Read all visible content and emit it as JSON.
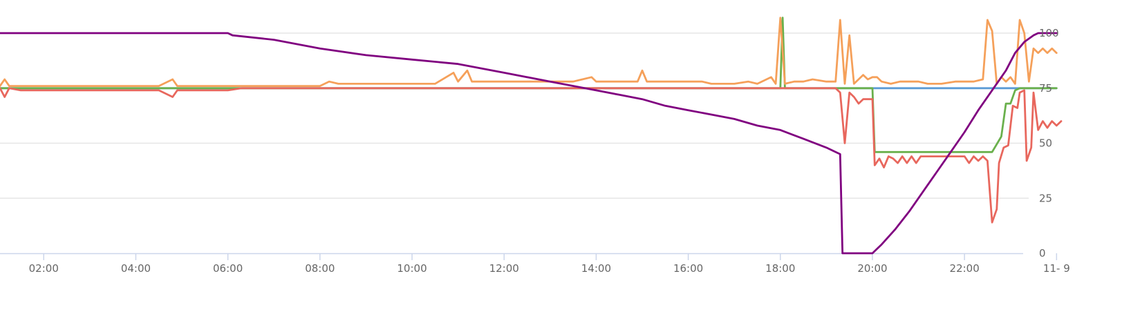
{
  "chart_data": {
    "type": "line",
    "title": "",
    "xlabel": "",
    "ylabel": "",
    "x_unit": "hour",
    "xlim": [
      1.05,
      24.1
    ],
    "ylim": [
      0,
      108
    ],
    "grid": true,
    "legend": "none",
    "x_ticks": [
      {
        "value": 2,
        "label": "02:00"
      },
      {
        "value": 4,
        "label": "04:00"
      },
      {
        "value": 6,
        "label": "06:00"
      },
      {
        "value": 8,
        "label": "08:00"
      },
      {
        "value": 10,
        "label": "10:00"
      },
      {
        "value": 12,
        "label": "12:00"
      },
      {
        "value": 14,
        "label": "14:00"
      },
      {
        "value": 16,
        "label": "16:00"
      },
      {
        "value": 18,
        "label": "18:00"
      },
      {
        "value": 20,
        "label": "20:00"
      },
      {
        "value": 22,
        "label": "22:00"
      },
      {
        "value": 24,
        "label": "11- 9"
      }
    ],
    "y_ticks": [
      {
        "value": 0,
        "label": "0"
      },
      {
        "value": 25,
        "label": "25"
      },
      {
        "value": 50,
        "label": "50"
      },
      {
        "value": 75,
        "label": "75"
      },
      {
        "value": 100,
        "label": "100"
      }
    ],
    "series": [
      {
        "color": "#5b9bd5",
        "points": [
          [
            1.05,
            75
          ],
          [
            24,
            75
          ]
        ]
      },
      {
        "color": "#6ab04c",
        "points": [
          [
            1.05,
            75
          ],
          [
            18,
            75
          ],
          [
            18.05,
            107
          ],
          [
            18.1,
            75
          ],
          [
            20,
            75
          ],
          [
            20.05,
            46
          ],
          [
            22.6,
            46
          ],
          [
            22.8,
            53
          ],
          [
            22.9,
            68
          ],
          [
            23,
            68
          ],
          [
            23.1,
            74
          ],
          [
            23.2,
            75
          ],
          [
            24,
            75
          ]
        ]
      },
      {
        "color": "#f5a05a",
        "points": [
          [
            1.05,
            76
          ],
          [
            1.15,
            79
          ],
          [
            1.25,
            76
          ],
          [
            1.5,
            76
          ],
          [
            2,
            76
          ],
          [
            2.5,
            76
          ],
          [
            3,
            76
          ],
          [
            3.5,
            76
          ],
          [
            4,
            76
          ],
          [
            4.5,
            76
          ],
          [
            4.8,
            79
          ],
          [
            4.9,
            76
          ],
          [
            5.5,
            76
          ],
          [
            6,
            76
          ],
          [
            7,
            76
          ],
          [
            8,
            76
          ],
          [
            8.2,
            78
          ],
          [
            8.4,
            77
          ],
          [
            9,
            77
          ],
          [
            10,
            77
          ],
          [
            10.5,
            77
          ],
          [
            10.9,
            82
          ],
          [
            11,
            78
          ],
          [
            11.2,
            83
          ],
          [
            11.3,
            78
          ],
          [
            12,
            78
          ],
          [
            12.5,
            78
          ],
          [
            13,
            78
          ],
          [
            13.5,
            78
          ],
          [
            13.7,
            79
          ],
          [
            13.9,
            80
          ],
          [
            14,
            78
          ],
          [
            14.5,
            78
          ],
          [
            14.9,
            78
          ],
          [
            15,
            83
          ],
          [
            15.1,
            78
          ],
          [
            15.5,
            78
          ],
          [
            16,
            78
          ],
          [
            16.3,
            78
          ],
          [
            16.5,
            77
          ],
          [
            17,
            77
          ],
          [
            17.3,
            78
          ],
          [
            17.5,
            77
          ],
          [
            17.8,
            80
          ],
          [
            17.9,
            77
          ],
          [
            18,
            107
          ],
          [
            18.1,
            77
          ],
          [
            18.3,
            78
          ],
          [
            18.5,
            78
          ],
          [
            18.7,
            79
          ],
          [
            19,
            78
          ],
          [
            19.2,
            78
          ],
          [
            19.3,
            106
          ],
          [
            19.4,
            77
          ],
          [
            19.5,
            99
          ],
          [
            19.6,
            77
          ],
          [
            19.8,
            81
          ],
          [
            19.9,
            79
          ],
          [
            20,
            80
          ],
          [
            20.1,
            80
          ],
          [
            20.2,
            78
          ],
          [
            20.4,
            77
          ],
          [
            20.6,
            78
          ],
          [
            20.8,
            78
          ],
          [
            21,
            78
          ],
          [
            21.2,
            77
          ],
          [
            21.5,
            77
          ],
          [
            21.8,
            78
          ],
          [
            22,
            78
          ],
          [
            22.2,
            78
          ],
          [
            22.4,
            79
          ],
          [
            22.5,
            106
          ],
          [
            22.6,
            101
          ],
          [
            22.7,
            77
          ],
          [
            22.8,
            80
          ],
          [
            22.9,
            78
          ],
          [
            23,
            80
          ],
          [
            23.1,
            77
          ],
          [
            23.2,
            106
          ],
          [
            23.3,
            100
          ],
          [
            23.4,
            78
          ],
          [
            23.5,
            93
          ],
          [
            23.6,
            91
          ],
          [
            23.7,
            93
          ],
          [
            23.8,
            91
          ],
          [
            23.9,
            93
          ],
          [
            24,
            91
          ]
        ]
      },
      {
        "color": "#e8675d",
        "points": [
          [
            1.05,
            75
          ],
          [
            1.15,
            71
          ],
          [
            1.25,
            75
          ],
          [
            1.5,
            74
          ],
          [
            2,
            74
          ],
          [
            2.5,
            74
          ],
          [
            3,
            74
          ],
          [
            3.5,
            74
          ],
          [
            4,
            74
          ],
          [
            4.5,
            74
          ],
          [
            4.8,
            71
          ],
          [
            4.9,
            74
          ],
          [
            5.5,
            74
          ],
          [
            6,
            74
          ],
          [
            6.3,
            75
          ],
          [
            19.2,
            75
          ],
          [
            19.3,
            73
          ],
          [
            19.4,
            50
          ],
          [
            19.5,
            73
          ],
          [
            19.6,
            71
          ],
          [
            19.7,
            68
          ],
          [
            19.8,
            70
          ],
          [
            20,
            70
          ],
          [
            20.05,
            40
          ],
          [
            20.15,
            43
          ],
          [
            20.25,
            39
          ],
          [
            20.35,
            44
          ],
          [
            20.45,
            43
          ],
          [
            20.55,
            41
          ],
          [
            20.65,
            44
          ],
          [
            20.75,
            41
          ],
          [
            20.85,
            44
          ],
          [
            20.95,
            41
          ],
          [
            21.05,
            44
          ],
          [
            21.2,
            44
          ],
          [
            21.4,
            44
          ],
          [
            21.6,
            44
          ],
          [
            21.8,
            44
          ],
          [
            22,
            44
          ],
          [
            22.1,
            41
          ],
          [
            22.2,
            44
          ],
          [
            22.3,
            42
          ],
          [
            22.4,
            44
          ],
          [
            22.5,
            42
          ],
          [
            22.6,
            14
          ],
          [
            22.7,
            20
          ],
          [
            22.75,
            41
          ],
          [
            22.85,
            48
          ],
          [
            22.95,
            49
          ],
          [
            23.05,
            67
          ],
          [
            23.15,
            66
          ],
          [
            23.2,
            73
          ],
          [
            23.3,
            74
          ],
          [
            23.35,
            42
          ],
          [
            23.45,
            48
          ],
          [
            23.5,
            73
          ],
          [
            23.6,
            56
          ],
          [
            23.7,
            60
          ],
          [
            23.8,
            57
          ],
          [
            23.9,
            60
          ],
          [
            24,
            58
          ],
          [
            24.1,
            60
          ]
        ]
      },
      {
        "color": "#800080",
        "points": [
          [
            1.05,
            100
          ],
          [
            6,
            100
          ],
          [
            6.1,
            99
          ],
          [
            7,
            97
          ],
          [
            8,
            93
          ],
          [
            9,
            90
          ],
          [
            10,
            88
          ],
          [
            11,
            86
          ],
          [
            12,
            82
          ],
          [
            13,
            78
          ],
          [
            14,
            74
          ],
          [
            14.5,
            72
          ],
          [
            15,
            70
          ],
          [
            15.5,
            67
          ],
          [
            16,
            65
          ],
          [
            16.5,
            63
          ],
          [
            17,
            61
          ],
          [
            17.5,
            58
          ],
          [
            18,
            56
          ],
          [
            18.5,
            52
          ],
          [
            19,
            48
          ],
          [
            19.2,
            46
          ],
          [
            19.3,
            45
          ],
          [
            19.35,
            0
          ],
          [
            20,
            0
          ],
          [
            20.2,
            4
          ],
          [
            20.5,
            11
          ],
          [
            20.8,
            19
          ],
          [
            21.1,
            28
          ],
          [
            21.4,
            37
          ],
          [
            21.7,
            46
          ],
          [
            22,
            55
          ],
          [
            22.3,
            65
          ],
          [
            22.6,
            74
          ],
          [
            22.9,
            83
          ],
          [
            23.1,
            91
          ],
          [
            23.3,
            96
          ],
          [
            23.5,
            99
          ],
          [
            23.6,
            100
          ],
          [
            24,
            100
          ]
        ]
      }
    ]
  }
}
